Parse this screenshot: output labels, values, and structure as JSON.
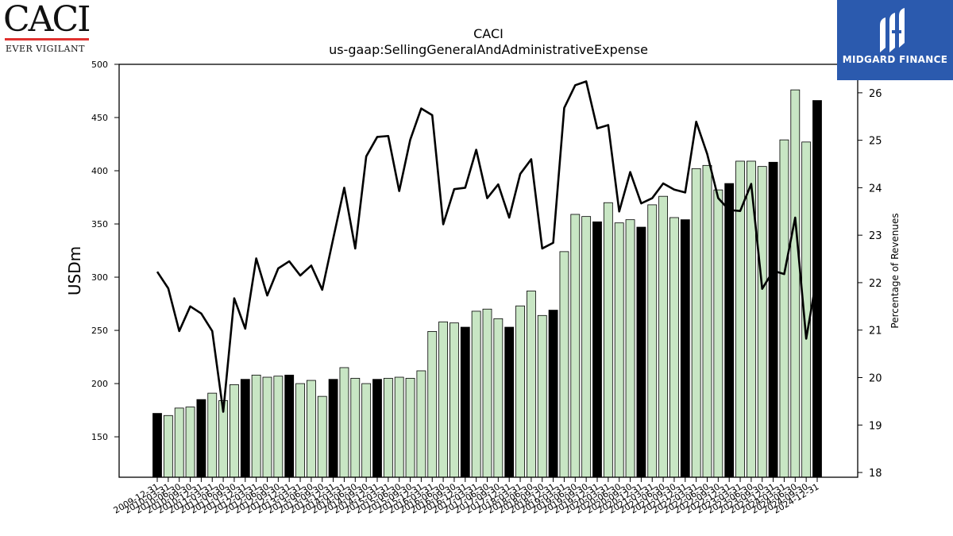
{
  "branding": {
    "left_logo_word": "CACI",
    "left_logo_tagline": "EVER VIGILANT",
    "right_logo_name": "MIDGARD FINANCE",
    "right_logo_color": "#2b5aae"
  },
  "chart_data": {
    "type": "bar",
    "title": "CACI",
    "subtitle": "us-gaap:SellingGeneralAndAdministrativeExpense",
    "ylabel": "USDm",
    "y2label": "Percentage of Revenues",
    "ylim": [
      112,
      500
    ],
    "y2lim": [
      17.9,
      26.6
    ],
    "yticks": [
      150,
      200,
      250,
      300,
      350,
      400,
      450,
      500
    ],
    "y2ticks": [
      18,
      19,
      20,
      21,
      22,
      23,
      24,
      25,
      26
    ],
    "categories": [
      "2009-12-31",
      "2010-03-31",
      "2010-06-30",
      "2010-09-30",
      "2010-12-31",
      "2011-03-31",
      "2011-06-30",
      "2011-09-30",
      "2011-12-31",
      "2012-03-31",
      "2012-06-30",
      "2012-09-30",
      "2012-12-31",
      "2013-03-31",
      "2013-06-30",
      "2013-09-30",
      "2013-12-31",
      "2014-03-31",
      "2014-06-30",
      "2014-09-30",
      "2014-12-31",
      "2015-03-31",
      "2015-06-30",
      "2015-09-30",
      "2015-12-31",
      "2016-03-31",
      "2016-06-30",
      "2016-09-30",
      "2016-12-31",
      "2017-03-31",
      "2017-06-30",
      "2017-09-30",
      "2017-12-31",
      "2018-03-31",
      "2018-06-30",
      "2018-09-30",
      "2018-12-31",
      "2019-03-31",
      "2019-06-30",
      "2019-09-30",
      "2019-12-31",
      "2020-03-31",
      "2020-06-30",
      "2020-09-30",
      "2020-12-31",
      "2021-03-31",
      "2021-06-30",
      "2021-09-30",
      "2021-12-31",
      "2022-03-31",
      "2022-06-30",
      "2022-09-30",
      "2022-12-31",
      "2023-03-31",
      "2023-06-30",
      "2023-09-30",
      "2023-12-31",
      "2024-03-31",
      "2024-06-30",
      "2024-09-30",
      "2024-12-31"
    ],
    "tick_labels": [
      "2009-12-31",
      "2010-03-31",
      "2010-06-30",
      "2010-09-30",
      "2010-12-31",
      "2011-03-31",
      "2011-06-30",
      "2011-09-30",
      "2011-12-31",
      "2012-03-31",
      "2012-06-30",
      "2012-09-30",
      "2012-12-31",
      "2013-03-31",
      "2013-06-30",
      "2013-09-30",
      "2013-12-31",
      "2014-03-31",
      "2014-06-30",
      "2014-09-30",
      "2014-12-31",
      "2015-03-31",
      "2015-06-30",
      "2015-09-30",
      "2015-12-31",
      "2016-03-31",
      "2016-06-30",
      "2016-09-30",
      "2016-12-31",
      "2017-03-31",
      "2017-06-30",
      "2017-09-30",
      "2017-12-31",
      "2018-03-31",
      "2018-06-30",
      "2018-09-30",
      "2018-12-31",
      "2019-03-31",
      "2019-06-30",
      "2019-09-30",
      "2019-12-31",
      "2020-03-31",
      "2020-06-30",
      "2020-09-30",
      "2020-12-31",
      "2021-03-31",
      "2021-06-30",
      "2021-09-30",
      "2021-12-31",
      "2022-03-31",
      "2022-06-30",
      "2022-09-30",
      "2022-12-31",
      "2023-03-31",
      "2023-06-30",
      "2023-09-30",
      "2023-12-31",
      "2024-03-31",
      "2024-06-30",
      "2024-09-30",
      "2024-12-31"
    ],
    "series": [
      {
        "type": "bar",
        "axis": "left",
        "values": [
          172,
          170,
          177,
          178,
          185,
          191,
          184,
          199,
          204,
          208,
          206,
          207,
          208,
          200,
          203,
          188,
          204,
          215,
          205,
          200,
          204,
          205,
          206,
          205,
          212,
          249,
          258,
          257,
          253,
          268,
          270,
          261,
          253,
          273,
          287,
          264,
          269,
          324,
          359,
          357,
          352,
          370,
          351,
          354,
          347,
          368,
          376,
          356,
          354,
          402,
          405,
          382,
          388,
          409,
          409,
          404,
          408,
          429,
          476,
          427,
          466
        ],
        "colors": [
          "#000000",
          "#c8e6c4",
          "#c8e6c4",
          "#c8e6c4",
          "#000000",
          "#c8e6c4",
          "#c8e6c4",
          "#c8e6c4",
          "#000000",
          "#c8e6c4",
          "#c8e6c4",
          "#c8e6c4",
          "#000000",
          "#c8e6c4",
          "#c8e6c4",
          "#c8e6c4",
          "#000000",
          "#c8e6c4",
          "#c8e6c4",
          "#c8e6c4",
          "#000000",
          "#c8e6c4",
          "#c8e6c4",
          "#c8e6c4",
          "#c8e6c4",
          "#c8e6c4",
          "#c8e6c4",
          "#c8e6c4",
          "#000000",
          "#c8e6c4",
          "#c8e6c4",
          "#c8e6c4",
          "#000000",
          "#c8e6c4",
          "#c8e6c4",
          "#c8e6c4",
          "#000000",
          "#c8e6c4",
          "#c8e6c4",
          "#c8e6c4",
          "#000000",
          "#c8e6c4",
          "#c8e6c4",
          "#c8e6c4",
          "#000000",
          "#c8e6c4",
          "#c8e6c4",
          "#c8e6c4",
          "#000000",
          "#c8e6c4",
          "#c8e6c4",
          "#c8e6c4",
          "#000000",
          "#c8e6c4",
          "#c8e6c4",
          "#c8e6c4",
          "#000000",
          "#c8e6c4",
          "#c8e6c4",
          "#c8e6c4",
          "#000000"
        ]
      },
      {
        "type": "line",
        "axis": "right",
        "color": "#000000",
        "values": [
          22.23,
          21.88,
          20.98,
          21.5,
          21.35,
          20.98,
          19.28,
          21.67,
          21.03,
          22.51,
          21.73,
          22.3,
          22.45,
          22.15,
          22.36,
          21.85,
          22.93,
          24.0,
          22.72,
          24.66,
          25.07,
          25.09,
          23.93,
          25.01,
          25.67,
          25.53,
          23.23,
          23.97,
          24.0,
          24.8,
          23.78,
          24.07,
          23.37,
          24.29,
          24.6,
          22.72,
          22.84,
          25.68,
          26.16,
          26.24,
          25.25,
          25.32,
          23.5,
          24.33,
          23.67,
          23.78,
          24.09,
          23.96,
          23.9,
          25.39,
          24.71,
          23.78,
          23.53,
          23.51,
          24.08,
          21.87,
          22.25,
          22.18,
          23.37,
          20.82,
          22.17
        ]
      }
    ],
    "grid": false,
    "legend": "none"
  }
}
